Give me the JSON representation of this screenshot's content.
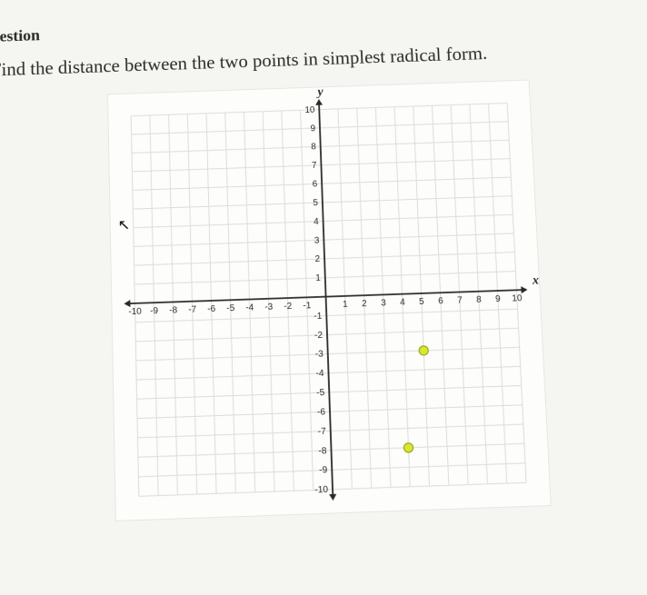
{
  "header": {
    "label": "uestion"
  },
  "prompt": {
    "text": "Find the distance between the two points in simplest radical form."
  },
  "chart": {
    "type": "scatter",
    "xlim": [
      -10,
      10
    ],
    "ylim": [
      -10,
      10
    ],
    "tick_step": 1,
    "x_axis_label": "x",
    "y_axis_label": "y",
    "tick_fontsize": 10,
    "axis_label_fontsize": 14,
    "background_color": "#fdfdfb",
    "grid_color": "#dcdcd8",
    "axis_color": "#2a2a2a",
    "points": [
      {
        "x": 5,
        "y": -3
      },
      {
        "x": 4,
        "y": -8
      }
    ],
    "point_fill": "#d7e82f",
    "point_stroke": "#9aa820",
    "point_radius": 5
  },
  "cursor": {
    "glyph": "↖",
    "shown": true
  }
}
